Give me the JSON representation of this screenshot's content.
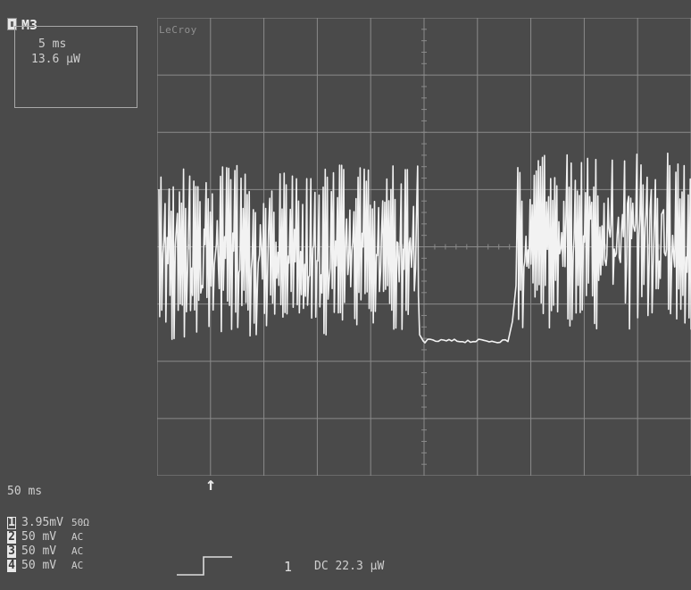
{
  "trace": {
    "name": "M3",
    "timebase": "5 ms",
    "amplitude": "13.6 μW"
  },
  "brand": "LeCroy",
  "acquisition": {
    "timebase": "50 ms"
  },
  "channels": [
    {
      "number": "1",
      "scale": "3.95mV",
      "coupling": "50Ω",
      "selected": true
    },
    {
      "number": "2",
      "scale": "50 mV",
      "coupling": "AC",
      "selected": false
    },
    {
      "number": "3",
      "scale": "50 mV",
      "coupling": "AC",
      "selected": false
    },
    {
      "number": "4",
      "scale": "50 mV",
      "coupling": "AC",
      "selected": false
    }
  ],
  "trigger": {
    "source": "1",
    "level": "DC 22.3 μW",
    "slope": "rising-edge-icon"
  },
  "colors": {
    "background": "#4a4a4a",
    "grid": "#8a8a8a",
    "trace": "#f2f2f2",
    "text": "#cfcfcf"
  },
  "icons": [
    "trace-icon",
    "trigger-position-arrow-icon",
    "rising-edge-icon"
  ]
}
